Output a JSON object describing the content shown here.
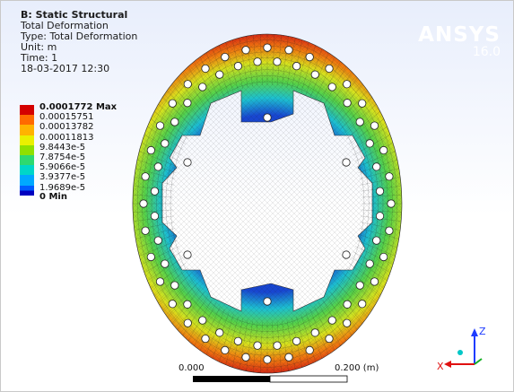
{
  "info": {
    "title": "B: Static Structural",
    "lines": [
      "Total Deformation",
      "Type: Total Deformation",
      "Unit: m",
      "Time: 1",
      "18-03-2017 12:30"
    ]
  },
  "brand": {
    "name": "ANSYS",
    "version": "16.0"
  },
  "legend": {
    "labels": [
      "0.0001772 Max",
      "0.00015751",
      "0.00013782",
      "0.00011813",
      "9.8443e-5",
      "7.8754e-5",
      "5.9066e-5",
      "3.9377e-5",
      "1.9689e-5",
      "0 Min"
    ],
    "colors": [
      "#d40000",
      "#ff6a00",
      "#ffb300",
      "#e9f000",
      "#8fe000",
      "#2ed970",
      "#00d6c8",
      "#00a8ff",
      "#005cff",
      "#0000c0"
    ]
  },
  "scale": {
    "start": "0.000",
    "end": "0.200 (m)"
  },
  "axes": {
    "z": "Z",
    "x": "X"
  },
  "colors": {
    "rim": "#d82a10",
    "mid": "#7fd040",
    "hub": "#1340c8",
    "mesh": "#1a1a1a"
  }
}
